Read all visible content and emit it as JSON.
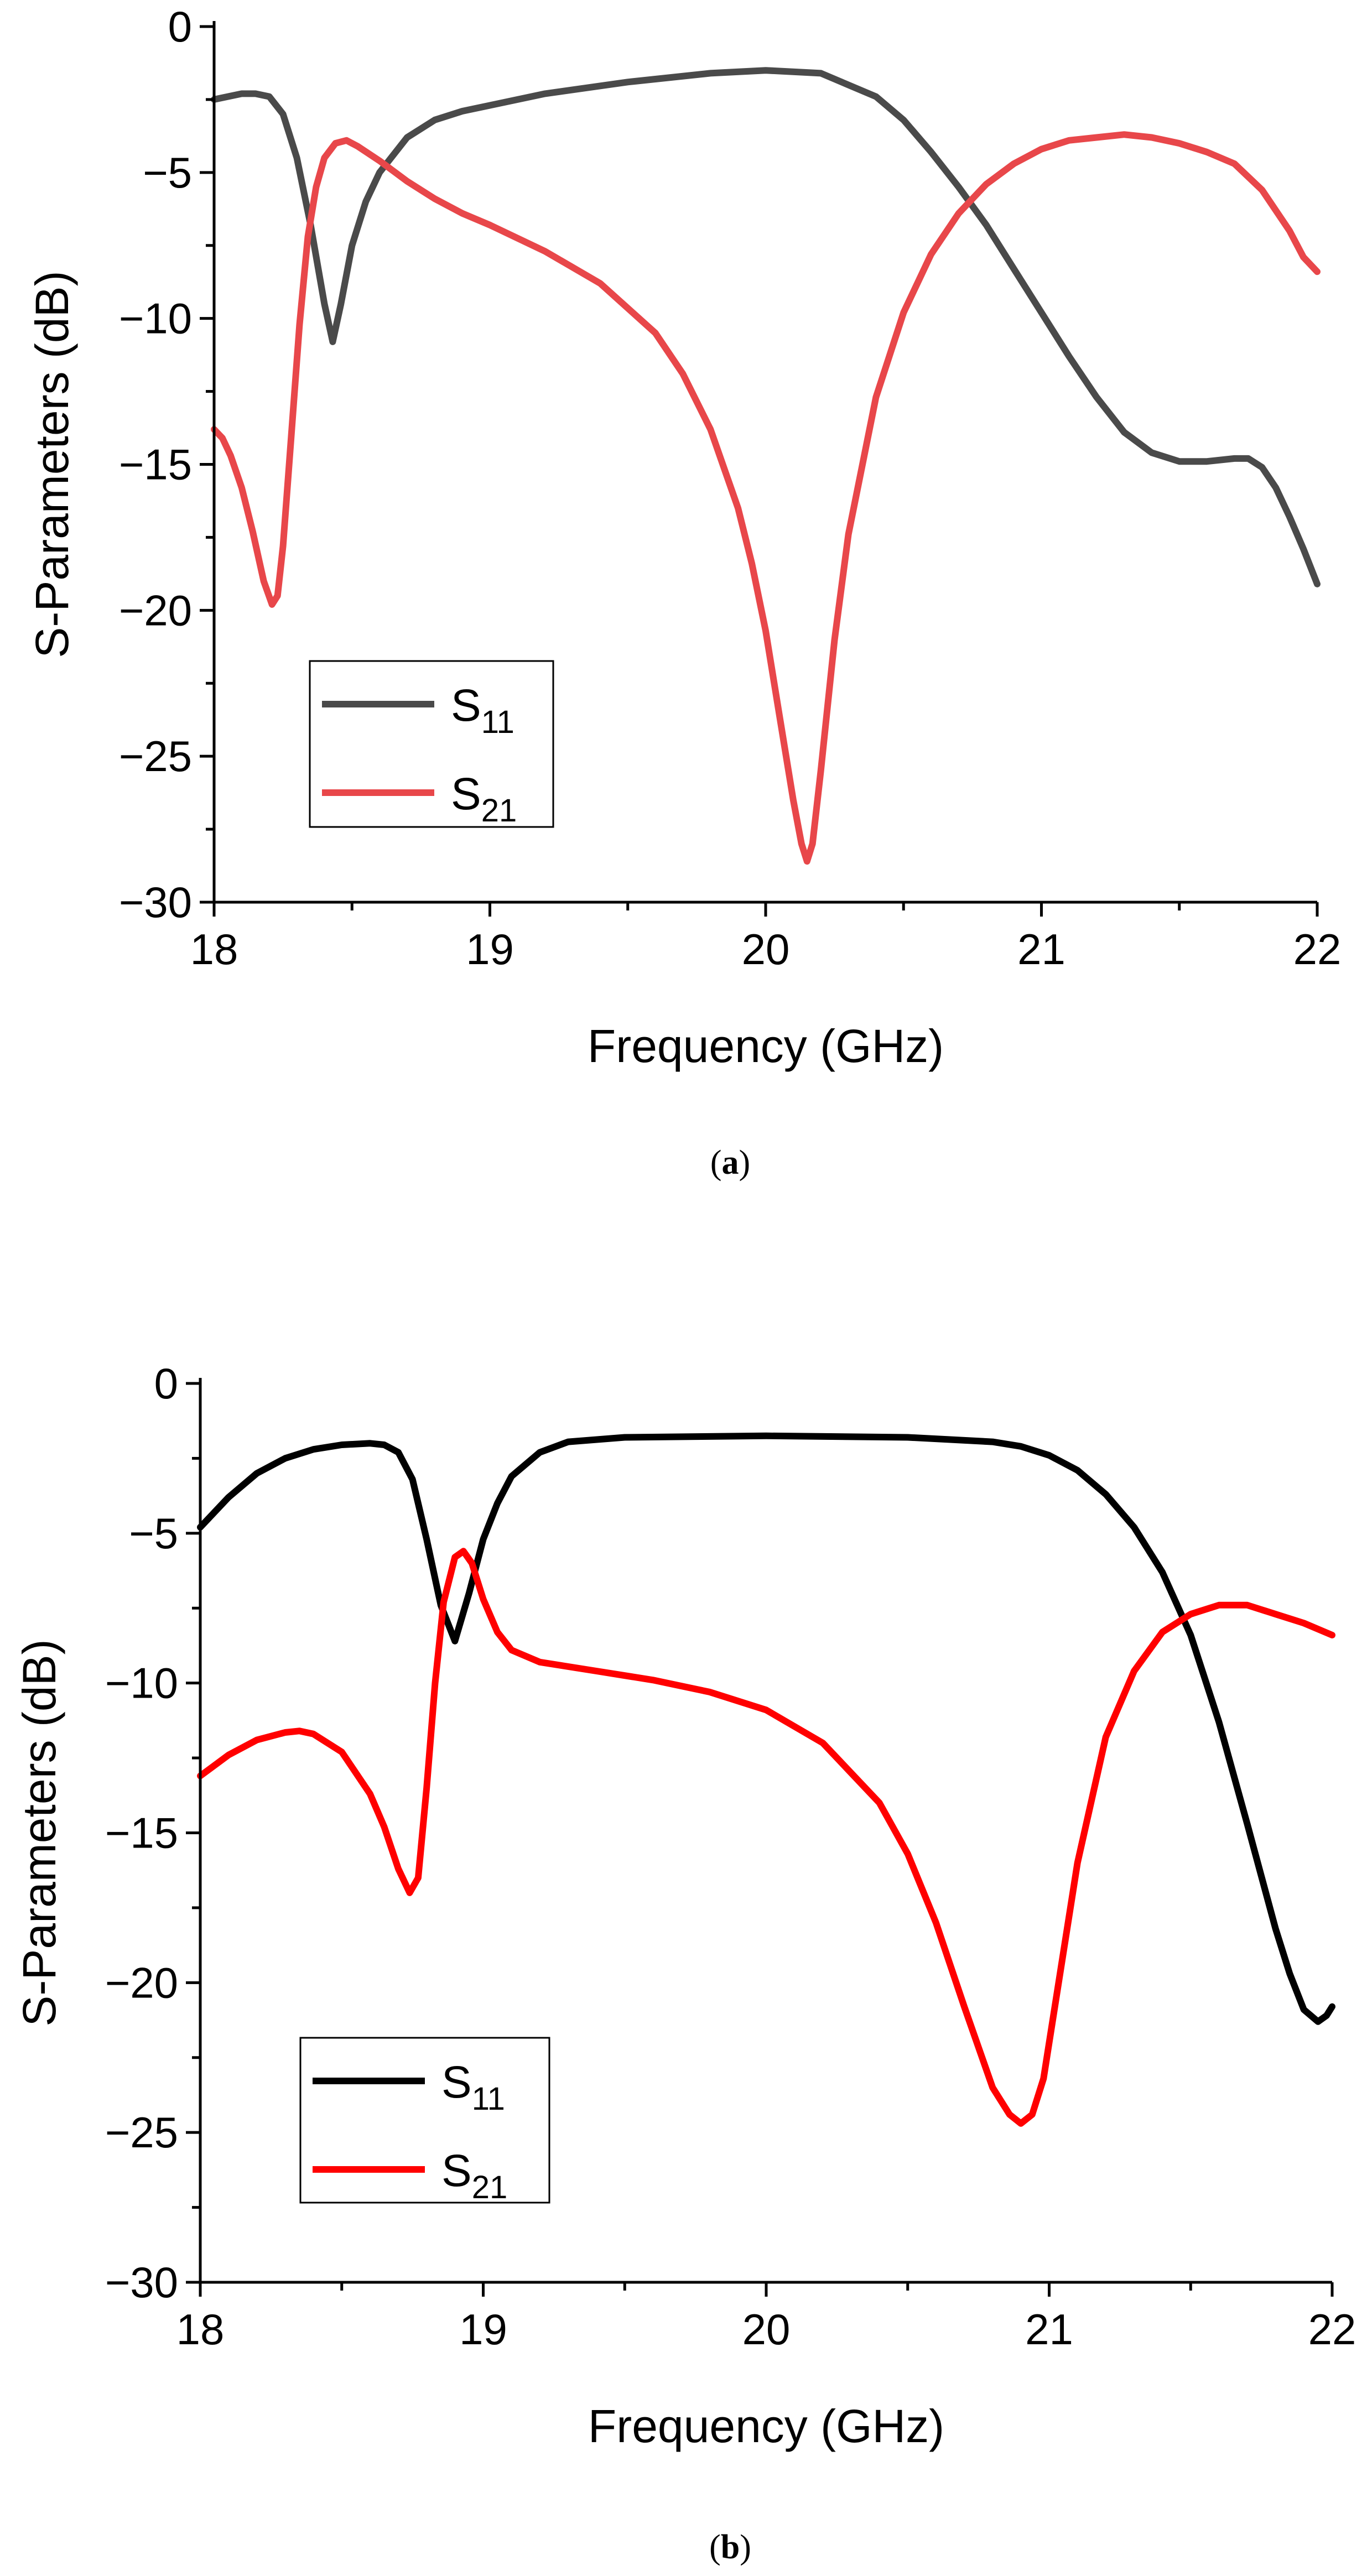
{
  "figure": {
    "captions": [
      {
        "open": "(",
        "letter": "a",
        "close": ")"
      },
      {
        "open": "(",
        "letter": "b",
        "close": ")"
      }
    ]
  },
  "chart_data": [
    {
      "type": "line",
      "panel": "a",
      "xlabel": "Frequency (GHz)",
      "ylabel": "S-Parameters (dB)",
      "xlim": [
        18,
        22
      ],
      "ylim": [
        -30,
        0
      ],
      "xticks": [
        18,
        19,
        20,
        21,
        22
      ],
      "yticks": [
        0,
        -5,
        -10,
        -15,
        -20,
        -25,
        -30
      ],
      "ytick_labels": [
        "0",
        "−5",
        "−10",
        "−15",
        "−20",
        "−25",
        "−30"
      ],
      "legend_position": "lower-left",
      "series": [
        {
          "name": "S",
          "subscript": "11",
          "color": "#4a4a4a",
          "x": [
            18.0,
            18.05,
            18.1,
            18.15,
            18.2,
            18.25,
            18.3,
            18.35,
            18.4,
            18.43,
            18.46,
            18.5,
            18.55,
            18.6,
            18.7,
            18.8,
            18.9,
            19.0,
            19.2,
            19.5,
            19.8,
            20.0,
            20.2,
            20.4,
            20.5,
            20.6,
            20.7,
            20.8,
            20.9,
            21.0,
            21.1,
            21.2,
            21.3,
            21.4,
            21.5,
            21.6,
            21.7,
            21.75,
            21.8,
            21.85,
            21.9,
            21.95,
            22.0
          ],
          "y": [
            -2.5,
            -2.4,
            -2.3,
            -2.3,
            -2.4,
            -3.0,
            -4.5,
            -6.8,
            -9.5,
            -10.8,
            -9.5,
            -7.5,
            -6.0,
            -5.0,
            -3.8,
            -3.2,
            -2.9,
            -2.7,
            -2.3,
            -1.9,
            -1.6,
            -1.5,
            -1.6,
            -2.4,
            -3.2,
            -4.3,
            -5.5,
            -6.8,
            -8.3,
            -9.8,
            -11.3,
            -12.7,
            -13.9,
            -14.6,
            -14.9,
            -14.9,
            -14.8,
            -14.8,
            -15.1,
            -15.8,
            -16.8,
            -17.9,
            -19.1
          ]
        },
        {
          "name": "S",
          "subscript": "21",
          "color": "#e8474a",
          "x": [
            18.0,
            18.03,
            18.06,
            18.1,
            18.14,
            18.18,
            18.21,
            18.23,
            18.25,
            18.28,
            18.31,
            18.34,
            18.37,
            18.4,
            18.44,
            18.48,
            18.52,
            18.6,
            18.7,
            18.8,
            18.9,
            19.0,
            19.2,
            19.4,
            19.6,
            19.7,
            19.8,
            19.9,
            19.95,
            20.0,
            20.05,
            20.1,
            20.13,
            20.15,
            20.17,
            20.2,
            20.25,
            20.3,
            20.4,
            20.5,
            20.6,
            20.7,
            20.8,
            20.9,
            21.0,
            21.1,
            21.2,
            21.3,
            21.4,
            21.5,
            21.6,
            21.7,
            21.8,
            21.9,
            21.95,
            22.0
          ],
          "y": [
            -13.8,
            -14.1,
            -14.7,
            -15.8,
            -17.3,
            -19.0,
            -19.8,
            -19.5,
            -17.8,
            -14.0,
            -10.2,
            -7.2,
            -5.5,
            -4.5,
            -4.0,
            -3.9,
            -4.1,
            -4.6,
            -5.3,
            -5.9,
            -6.4,
            -6.8,
            -7.7,
            -8.8,
            -10.5,
            -11.9,
            -13.8,
            -16.5,
            -18.4,
            -20.7,
            -23.6,
            -26.5,
            -28.0,
            -28.6,
            -28.0,
            -25.5,
            -21.0,
            -17.4,
            -12.7,
            -9.8,
            -7.8,
            -6.4,
            -5.4,
            -4.7,
            -4.2,
            -3.9,
            -3.8,
            -3.7,
            -3.8,
            -4.0,
            -4.3,
            -4.7,
            -5.6,
            -7.0,
            -7.9,
            -8.4
          ]
        }
      ]
    },
    {
      "type": "line",
      "panel": "b",
      "xlabel": "Frequency (GHz)",
      "ylabel": "S-Parameters (dB)",
      "xlim": [
        18,
        22
      ],
      "ylim": [
        -30,
        0
      ],
      "xticks": [
        18,
        19,
        20,
        21,
        22
      ],
      "yticks": [
        0,
        -5,
        -10,
        -15,
        -20,
        -25,
        -30
      ],
      "ytick_labels": [
        "0",
        "−5",
        "−10",
        "−15",
        "−20",
        "−25",
        "−30"
      ],
      "legend_position": "lower-left",
      "series": [
        {
          "name": "S",
          "subscript": "11",
          "color": "#000000",
          "x": [
            18.0,
            18.1,
            18.2,
            18.3,
            18.4,
            18.5,
            18.6,
            18.65,
            18.7,
            18.75,
            18.8,
            18.85,
            18.9,
            18.95,
            19.0,
            19.05,
            19.1,
            19.2,
            19.3,
            19.5,
            20.0,
            20.5,
            20.8,
            20.9,
            21.0,
            21.1,
            21.2,
            21.3,
            21.4,
            21.5,
            21.6,
            21.7,
            21.8,
            21.85,
            21.9,
            21.95,
            21.98,
            22.0
          ],
          "y": [
            -4.8,
            -3.8,
            -3.0,
            -2.5,
            -2.2,
            -2.05,
            -2.0,
            -2.05,
            -2.3,
            -3.2,
            -5.2,
            -7.4,
            -8.6,
            -7.0,
            -5.2,
            -4.0,
            -3.1,
            -2.3,
            -1.95,
            -1.8,
            -1.75,
            -1.8,
            -1.95,
            -2.1,
            -2.4,
            -2.9,
            -3.7,
            -4.8,
            -6.3,
            -8.4,
            -11.3,
            -14.7,
            -18.2,
            -19.7,
            -20.9,
            -21.3,
            -21.1,
            -20.8
          ]
        },
        {
          "name": "S",
          "subscript": "21",
          "color": "#ff0000",
          "x": [
            18.0,
            18.1,
            18.2,
            18.3,
            18.35,
            18.4,
            18.5,
            18.6,
            18.65,
            18.7,
            18.74,
            18.77,
            18.8,
            18.83,
            18.86,
            18.9,
            18.93,
            18.96,
            19.0,
            19.05,
            19.1,
            19.2,
            19.4,
            19.6,
            19.8,
            20.0,
            20.2,
            20.4,
            20.5,
            20.6,
            20.7,
            20.8,
            20.86,
            20.9,
            20.94,
            20.98,
            21.0,
            21.1,
            21.2,
            21.3,
            21.4,
            21.5,
            21.6,
            21.7,
            21.8,
            21.9,
            22.0
          ],
          "y": [
            -13.1,
            -12.4,
            -11.9,
            -11.65,
            -11.6,
            -11.7,
            -12.3,
            -13.7,
            -14.8,
            -16.2,
            -17.0,
            -16.5,
            -13.5,
            -10.0,
            -7.3,
            -5.8,
            -5.6,
            -6.0,
            -7.2,
            -8.3,
            -8.9,
            -9.3,
            -9.6,
            -9.9,
            -10.3,
            -10.9,
            -12.0,
            -14.0,
            -15.7,
            -18.0,
            -20.8,
            -23.5,
            -24.4,
            -24.7,
            -24.4,
            -23.2,
            -22.0,
            -16.0,
            -11.8,
            -9.6,
            -8.3,
            -7.7,
            -7.4,
            -7.4,
            -7.7,
            -8.0,
            -8.4
          ]
        }
      ]
    }
  ]
}
